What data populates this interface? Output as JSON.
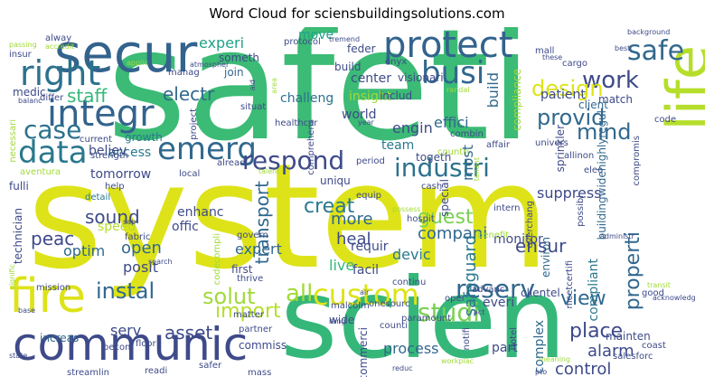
{
  "title": "Word Cloud for sciensbuildingsolutions.com",
  "colors": {
    "yellow": "#dde318",
    "lime": "#a0da39",
    "green": "#4ac16d",
    "teal": "#1fa187",
    "blue": "#365c8d",
    "navy": "#46327e",
    "purple": "#440154",
    "gray": "#2a788e"
  },
  "words": [
    {
      "text": "safeti",
      "color": "#3bbb75"
    },
    {
      "text": "system",
      "color": "#dde318"
    },
    {
      "text": "scien",
      "color": "#35b779"
    },
    {
      "text": "secur",
      "color": "#33638d"
    },
    {
      "text": "communic",
      "color": "#3e4a89"
    },
    {
      "text": "fire",
      "color": "#dde318"
    },
    {
      "text": "life",
      "color": "#b5de2b"
    },
    {
      "text": "protect",
      "color": "#33638d"
    },
    {
      "text": "integr",
      "color": "#33638d"
    },
    {
      "text": "right",
      "color": "#2c728e"
    },
    {
      "text": "busi",
      "color": "#31688e"
    },
    {
      "text": "safe",
      "color": "#31688e"
    },
    {
      "text": "data",
      "color": "#2a788e"
    },
    {
      "text": "emerg",
      "color": "#31688e"
    },
    {
      "text": "case",
      "color": "#2c728e"
    },
    {
      "text": "respond",
      "color": "#3e4a89"
    },
    {
      "text": "industri",
      "color": "#2c728e"
    },
    {
      "text": "work",
      "color": "#3e4a89"
    },
    {
      "text": "design",
      "color": "#dde318"
    },
    {
      "text": "provid",
      "color": "#31688e"
    },
    {
      "text": "mind",
      "color": "#31688e"
    },
    {
      "text": "staff",
      "color": "#35b779"
    },
    {
      "text": "electr",
      "color": "#31688e"
    },
    {
      "text": "experi",
      "color": "#1fa187"
    },
    {
      "text": "solut",
      "color": "#a0da39"
    },
    {
      "text": "all",
      "color": "#a0da39"
    },
    {
      "text": "custom",
      "color": "#dde318"
    },
    {
      "text": "studi",
      "color": "#7ad151"
    },
    {
      "text": "reserv",
      "color": "#31688e"
    },
    {
      "text": "properti",
      "color": "#31688e"
    },
    {
      "text": "view",
      "color": "#31688e"
    },
    {
      "text": "place",
      "color": "#3e4a89"
    },
    {
      "text": "alarm",
      "color": "#3e4a89"
    },
    {
      "text": "control",
      "color": "#3e4a89"
    },
    {
      "text": "instal",
      "color": "#31688e"
    },
    {
      "text": "import",
      "color": "#b5de2b"
    },
    {
      "text": "asset",
      "color": "#3e4a89"
    },
    {
      "text": "sound",
      "color": "#3e4a89"
    },
    {
      "text": "peac",
      "color": "#3e4a89"
    },
    {
      "text": "open",
      "color": "#31688e"
    },
    {
      "text": "posit",
      "color": "#3e4a89"
    },
    {
      "text": "optim",
      "color": "#31688e"
    },
    {
      "text": "transport",
      "color": "#31688e"
    },
    {
      "text": "creat",
      "color": "#2a788e"
    },
    {
      "text": "more",
      "color": "#31688e"
    },
    {
      "text": "guest",
      "color": "#7ad151"
    },
    {
      "text": "compani",
      "color": "#31688e"
    },
    {
      "text": "ensur",
      "color": "#3e4a89"
    },
    {
      "text": "heal",
      "color": "#3e4a89"
    },
    {
      "text": "devic",
      "color": "#2a788e"
    },
    {
      "text": "live",
      "color": "#35b779"
    },
    {
      "text": "safeguard",
      "color": "#2a788e"
    },
    {
      "text": "suppress",
      "color": "#3e4a89"
    },
    {
      "text": "most",
      "color": "#31688e"
    },
    {
      "text": "engin",
      "color": "#3e4a89"
    },
    {
      "text": "effici",
      "color": "#31688e"
    },
    {
      "text": "build",
      "color": "#31688e"
    },
    {
      "text": "move",
      "color": "#1fa187"
    },
    {
      "text": "serv",
      "color": "#3e4a89"
    },
    {
      "text": "process",
      "color": "#31688e"
    },
    {
      "text": "part",
      "color": "#3e4a89"
    },
    {
      "text": "complex",
      "color": "#31688e"
    },
    {
      "text": "monitor",
      "color": "#3e4a89"
    },
    {
      "text": "expert",
      "color": "#31688e"
    },
    {
      "text": "team",
      "color": "#2a788e"
    },
    {
      "text": "world",
      "color": "#3e4a89"
    },
    {
      "text": "center",
      "color": "#3e4a89"
    },
    {
      "text": "insight",
      "color": "#a0da39"
    },
    {
      "text": "patient",
      "color": "#3e4a89"
    },
    {
      "text": "compliant",
      "color": "#2a788e"
    },
    {
      "text": "compliance",
      "color": "#a0da39"
    },
    {
      "text": "tomorrow",
      "color": "#3e4a89"
    },
    {
      "text": "speed",
      "color": "#b5de2b"
    },
    {
      "text": "enhanc",
      "color": "#3e4a89"
    },
    {
      "text": "offic",
      "color": "#3e4a89"
    },
    {
      "text": "access",
      "color": "#2a788e"
    },
    {
      "text": "believ",
      "color": "#3e4a89"
    },
    {
      "text": "challeng",
      "color": "#2c728e"
    },
    {
      "text": "uniqu",
      "color": "#3e4a89"
    },
    {
      "text": "togeth",
      "color": "#3e4a89"
    },
    {
      "text": "requir",
      "color": "#3e4a89"
    },
    {
      "text": "facil",
      "color": "#3e4a89"
    },
    {
      "text": "everi",
      "color": "#3e4a89"
    },
    {
      "text": "wide",
      "color": "#3e4a89"
    },
    {
      "text": "clientel",
      "color": "#3e4a89"
    },
    {
      "text": "mainten",
      "color": "#3e4a89"
    },
    {
      "text": "environ",
      "color": "#31688e"
    },
    {
      "text": "sprinkler",
      "color": "#3e4a89"
    },
    {
      "text": "client",
      "color": "#31688e"
    },
    {
      "text": "match",
      "color": "#3e4a89"
    },
    {
      "text": "includ",
      "color": "#3e4a89"
    },
    {
      "text": "visionari",
      "color": "#3e4a89"
    },
    {
      "text": "build",
      "color": "#3e4a89"
    },
    {
      "text": "healthcar",
      "color": "#3e4a89"
    },
    {
      "text": "comprehens",
      "color": "#3e4a89"
    },
    {
      "text": "technician",
      "color": "#3e4a89"
    },
    {
      "text": "fulli",
      "color": "#3e4a89"
    },
    {
      "text": "medic",
      "color": "#3e4a89"
    },
    {
      "text": "differ",
      "color": "#3e4a89"
    },
    {
      "text": "growth",
      "color": "#2a788e"
    },
    {
      "text": "current",
      "color": "#3e4a89"
    },
    {
      "text": "project",
      "color": "#3e4a89"
    },
    {
      "text": "join",
      "color": "#31688e"
    },
    {
      "text": "someth",
      "color": "#3e4a89"
    },
    {
      "text": "manag",
      "color": "#3e4a89"
    },
    {
      "text": "help",
      "color": "#3e4a89"
    },
    {
      "text": "detail",
      "color": "#2a788e"
    },
    {
      "text": "fabric",
      "color": "#3e4a89"
    },
    {
      "text": "govern",
      "color": "#3e4a89"
    },
    {
      "text": "first",
      "color": "#3e4a89"
    },
    {
      "text": "thrive",
      "color": "#3e4a89"
    },
    {
      "text": "matter",
      "color": "#3e4a89"
    },
    {
      "text": "partner",
      "color": "#3e4a89"
    },
    {
      "text": "floor",
      "color": "#3e4a89"
    },
    {
      "text": "becom",
      "color": "#3e4a89"
    },
    {
      "text": "increas",
      "color": "#31688e"
    },
    {
      "text": "commiss",
      "color": "#3e4a89"
    },
    {
      "text": "mass",
      "color": "#3e4a89"
    },
    {
      "text": "readi",
      "color": "#3e4a89"
    },
    {
      "text": "streamlin",
      "color": "#3e4a89"
    },
    {
      "text": "commerci",
      "color": "#3e4a89"
    },
    {
      "text": "notifi",
      "color": "#3e4a89"
    },
    {
      "text": "hotel",
      "color": "#3e4a89"
    },
    {
      "text": "special",
      "color": "#3e4a89"
    },
    {
      "text": "cash",
      "color": "#3e4a89"
    },
    {
      "text": "equip",
      "color": "#3e4a89"
    },
    {
      "text": "hospit",
      "color": "#3e4a89"
    },
    {
      "text": "intern",
      "color": "#3e4a89"
    },
    {
      "text": "everchang",
      "color": "#3e4a89"
    },
    {
      "text": "possibl",
      "color": "#3e4a89"
    },
    {
      "text": "nicetcertifi",
      "color": "#3e4a89"
    },
    {
      "text": "buildingwidehighlyregul",
      "color": "#31688e"
    },
    {
      "text": "onyx",
      "color": "#3e4a89"
    },
    {
      "text": "cargo",
      "color": "#3e4a89"
    },
    {
      "text": "feder",
      "color": "#3e4a89"
    },
    {
      "text": "mall",
      "color": "#3e4a89"
    },
    {
      "text": "these",
      "color": "#3e4a89"
    },
    {
      "text": "code",
      "color": "#3e4a89"
    },
    {
      "text": "allinon",
      "color": "#3e4a89"
    },
    {
      "text": "eleo",
      "color": "#3e4a89"
    },
    {
      "text": "univers",
      "color": "#3e4a89"
    },
    {
      "text": "affair",
      "color": "#3e4a89"
    },
    {
      "text": "combin",
      "color": "#3e4a89"
    },
    {
      "text": "period",
      "color": "#3e4a89"
    },
    {
      "text": "alreadi",
      "color": "#3e4a89"
    },
    {
      "text": "situat",
      "color": "#3e4a89"
    },
    {
      "text": "local",
      "color": "#3e4a89"
    },
    {
      "text": "aventura",
      "color": "#a0da39"
    },
    {
      "text": "strength",
      "color": "#3e4a89"
    },
    {
      "text": "search",
      "color": "#3e4a89"
    },
    {
      "text": "mission",
      "color": "#3e4a89"
    },
    {
      "text": "malcolm",
      "color": "#3e4a89"
    },
    {
      "text": "onesourc",
      "color": "#3e4a89"
    },
    {
      "text": "oper",
      "color": "#3e4a89"
    },
    {
      "text": "advanc",
      "color": "#3e4a89"
    },
    {
      "text": "continu",
      "color": "#3e4a89"
    },
    {
      "text": "paramount",
      "color": "#3e4a89"
    },
    {
      "text": "counti",
      "color": "#3e4a89"
    },
    {
      "text": "reduc",
      "color": "#3e4a89"
    },
    {
      "text": "salesforc",
      "color": "#3e4a89"
    },
    {
      "text": "good",
      "color": "#3e4a89"
    },
    {
      "text": "coast",
      "color": "#3e4a89"
    },
    {
      "text": "benefit",
      "color": "#a0da39"
    },
    {
      "text": "countri",
      "color": "#a0da39"
    },
    {
      "text": "protocol",
      "color": "#3e4a89"
    },
    {
      "text": "tremend",
      "color": "#3e4a89"
    },
    {
      "text": "safer",
      "color": "#3e4a89"
    },
    {
      "text": "alway",
      "color": "#3e4a89"
    },
    {
      "text": "insur",
      "color": "#3e4a89"
    },
    {
      "text": "passing",
      "color": "#a0da39"
    },
    {
      "text": "accredit",
      "color": "#a0da39"
    },
    {
      "text": "applic",
      "color": "#a0da39"
    },
    {
      "text": "atmospher",
      "color": "#3e4a89"
    },
    {
      "text": "background",
      "color": "#3e4a89"
    },
    {
      "text": "best",
      "color": "#3e4a89"
    },
    {
      "text": "compromis",
      "color": "#3e4a89"
    },
    {
      "text": "balanc",
      "color": "#3e4a89"
    },
    {
      "text": "necessari",
      "color": "#a0da39"
    },
    {
      "text": "state",
      "color": "#3e4a89"
    },
    {
      "text": "base",
      "color": "#3e4a89"
    },
    {
      "text": "codecompli",
      "color": "#a0da39"
    },
    {
      "text": "talent",
      "color": "#a0da39"
    },
    {
      "text": "tenant",
      "color": "#a0da39"
    },
    {
      "text": "randal",
      "color": "#a0da39"
    },
    {
      "text": "year",
      "color": "#3e4a89"
    },
    {
      "text": "administr",
      "color": "#3e4a89"
    },
    {
      "text": "transit",
      "color": "#a0da39"
    },
    {
      "text": "acknowledg",
      "color": "#3e4a89"
    },
    {
      "text": "act",
      "color": "#3e4a89"
    },
    {
      "text": "possess",
      "color": "#a0da39"
    },
    {
      "text": "workplac",
      "color": "#a0da39"
    },
    {
      "text": "rang",
      "color": "#3e4a89"
    },
    {
      "text": "air",
      "color": "#3e4a89"
    },
    {
      "text": "meaning",
      "color": "#a0da39"
    },
    {
      "text": "pto",
      "color": "#3e4a89"
    },
    {
      "text": "sap",
      "color": "#3e4a89"
    },
    {
      "text": "signific",
      "color": "#a0da39"
    },
    {
      "text": "aid",
      "color": "#3e4a89"
    },
    {
      "text": "area",
      "color": "#a0da39"
    }
  ]
}
